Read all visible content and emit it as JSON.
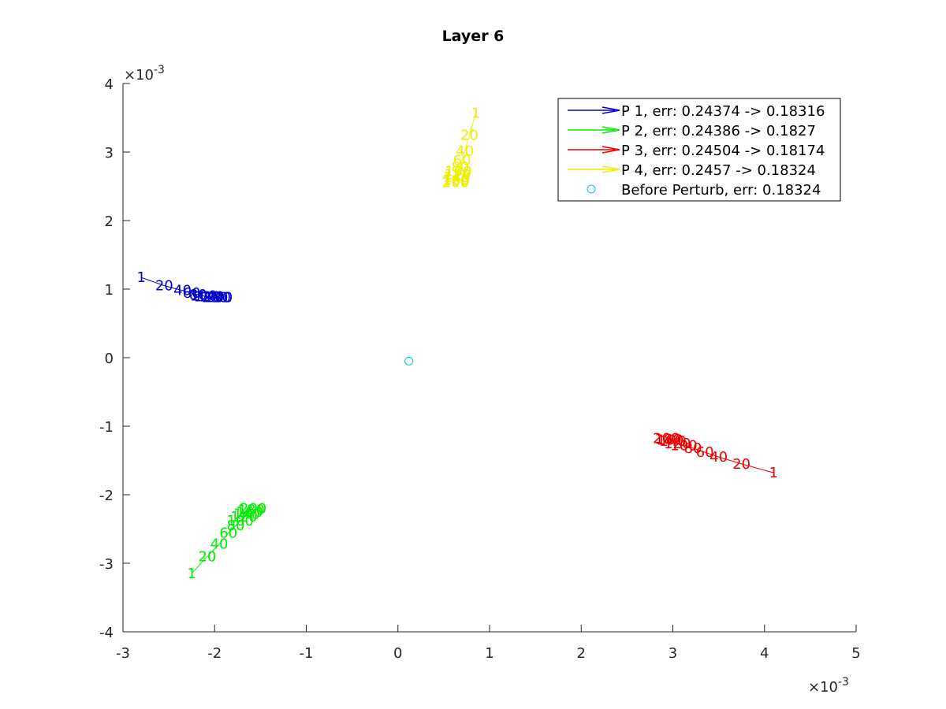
{
  "chart_data": {
    "type": "line",
    "title": "Layer 6",
    "xlabel": "",
    "ylabel": "",
    "x_multiplier": "×10",
    "x_multiplier_exp": "-3",
    "y_multiplier": "×10",
    "y_multiplier_exp": "-3",
    "xlim": [
      -3,
      5
    ],
    "ylim": [
      -4,
      4
    ],
    "xticks": [
      "-3",
      "-2",
      "-1",
      "0",
      "1",
      "2",
      "3",
      "4",
      "5"
    ],
    "yticks": [
      "4",
      "3",
      "2",
      "1",
      "0",
      "-1",
      "-2",
      "-3",
      "-4"
    ],
    "xtick_values": [
      -3,
      -2,
      -1,
      0,
      1,
      2,
      3,
      4,
      5
    ],
    "ytick_values": [
      4,
      3,
      2,
      1,
      0,
      -1,
      -2,
      -3,
      -4
    ],
    "grid": false,
    "legend_position": "top-right",
    "series": [
      {
        "name": "P 1, err: 0.24374 -> 0.18316",
        "color": "#0000cc",
        "labels": [
          "1",
          "20",
          "40",
          "60",
          "80",
          "100",
          "120",
          "140",
          "160",
          "180",
          "200"
        ],
        "x": [
          -2.8,
          -2.55,
          -2.35,
          -2.25,
          -2.18,
          -2.12,
          -2.08,
          -2.04,
          -2.0,
          -1.97,
          -1.95
        ],
        "y": [
          1.17,
          1.05,
          0.98,
          0.94,
          0.92,
          0.9,
          0.89,
          0.89,
          0.88,
          0.88,
          0.88
        ]
      },
      {
        "name": "P 2, err: 0.24386 -> 0.1827",
        "color": "#00ee00",
        "labels": [
          "1",
          "20",
          "40",
          "60",
          "80",
          "100",
          "120",
          "140",
          "160",
          "180",
          "200"
        ],
        "x": [
          -2.25,
          -2.08,
          -1.95,
          -1.85,
          -1.77,
          -1.72,
          -1.68,
          -1.65,
          -1.62,
          -1.6,
          -1.58
        ],
        "y": [
          -3.15,
          -2.9,
          -2.72,
          -2.56,
          -2.45,
          -2.38,
          -2.32,
          -2.28,
          -2.25,
          -2.22,
          -2.2
        ]
      },
      {
        "name": "P 3, err: 0.24504 -> 0.18174",
        "color": "#ee0000",
        "labels": [
          "1",
          "20",
          "40",
          "60",
          "80",
          "100",
          "120",
          "140",
          "160",
          "180",
          "200"
        ],
        "x": [
          4.1,
          3.75,
          3.5,
          3.35,
          3.22,
          3.12,
          3.05,
          3.0,
          2.97,
          2.95,
          2.93
        ],
        "y": [
          -1.68,
          -1.55,
          -1.45,
          -1.38,
          -1.32,
          -1.28,
          -1.25,
          -1.22,
          -1.2,
          -1.19,
          -1.18
        ]
      },
      {
        "name": "P 4, err: 0.2457 -> 0.18324",
        "color": "#eeee00",
        "labels": [
          "1",
          "20",
          "40",
          "60",
          "80",
          "100",
          "120",
          "140",
          "160",
          "180",
          "200"
        ],
        "x": [
          0.85,
          0.78,
          0.73,
          0.7,
          0.68,
          0.66,
          0.65,
          0.64,
          0.64,
          0.63,
          0.63
        ],
        "y": [
          3.57,
          3.25,
          3.02,
          2.88,
          2.78,
          2.72,
          2.67,
          2.63,
          2.6,
          2.58,
          2.56
        ]
      }
    ],
    "marker_series": {
      "name": "Before Perturb, err: 0.18324",
      "color": "#00c8d8",
      "x": 0.12,
      "y": -0.05
    }
  }
}
